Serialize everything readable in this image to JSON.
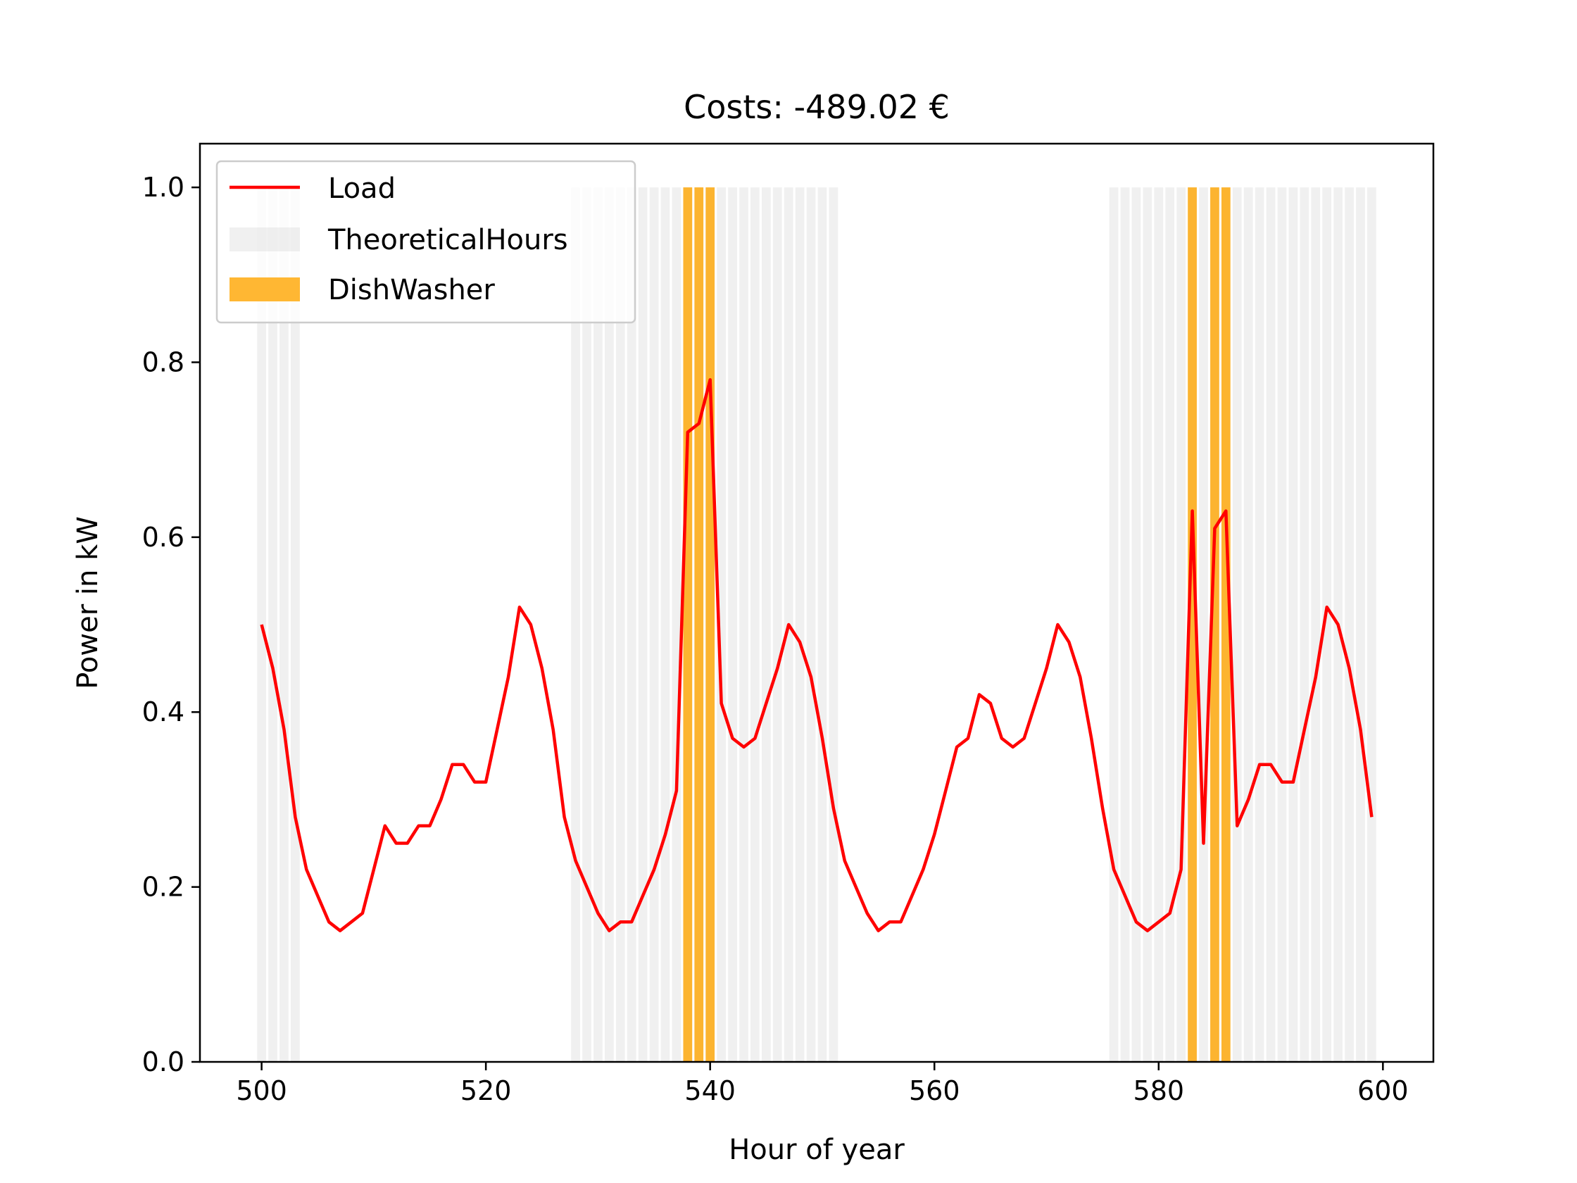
{
  "chart_data": {
    "type": "line",
    "title": "Costs: -489.02 €",
    "xlabel": "Hour of year",
    "ylabel": "Power in kW",
    "xlim": [
      494.5,
      604.5
    ],
    "ylim": [
      0,
      1.05
    ],
    "xticks": [
      500,
      520,
      540,
      560,
      580,
      600
    ],
    "yticks": [
      0.0,
      0.2,
      0.4,
      0.6,
      0.8,
      1.0
    ],
    "xtick_labels": [
      "500",
      "520",
      "540",
      "560",
      "580",
      "600"
    ],
    "ytick_labels": [
      "0.0",
      "0.2",
      "0.4",
      "0.6",
      "0.8",
      "1.0"
    ],
    "grid": false,
    "legend": {
      "position": "top-left",
      "entries": [
        {
          "label": "Load",
          "kind": "line",
          "color": "#ff0000"
        },
        {
          "label": "TheoreticalHours",
          "kind": "patch",
          "color": "#d9d9d9"
        },
        {
          "label": "DishWasher",
          "kind": "patch",
          "color": "#ffa500"
        }
      ]
    },
    "series": [
      {
        "name": "Load",
        "color": "#ff0000",
        "x": [
          500,
          501,
          502,
          503,
          504,
          505,
          506,
          507,
          508,
          509,
          510,
          511,
          512,
          513,
          514,
          515,
          516,
          517,
          518,
          519,
          520,
          521,
          522,
          523,
          524,
          525,
          526,
          527,
          528,
          529,
          530,
          531,
          532,
          533,
          534,
          535,
          536,
          537,
          538,
          539,
          540,
          541,
          542,
          543,
          544,
          545,
          546,
          547,
          548,
          549,
          550,
          551,
          552,
          553,
          554,
          555,
          556,
          557,
          558,
          559,
          560,
          561,
          562,
          563,
          564,
          565,
          566,
          567,
          568,
          569,
          570,
          571,
          572,
          573,
          574,
          575,
          576,
          577,
          578,
          579,
          580,
          581,
          582,
          583,
          584,
          585,
          586,
          587,
          588,
          589,
          590,
          591,
          592,
          593,
          594,
          595,
          596,
          597,
          598,
          599
        ],
        "values": [
          0.5,
          0.45,
          0.38,
          0.28,
          0.22,
          0.19,
          0.16,
          0.15,
          0.16,
          0.17,
          0.22,
          0.27,
          0.25,
          0.25,
          0.27,
          0.27,
          0.3,
          0.34,
          0.34,
          0.32,
          0.32,
          0.38,
          0.44,
          0.52,
          0.5,
          0.45,
          0.38,
          0.28,
          0.23,
          0.2,
          0.17,
          0.15,
          0.16,
          0.16,
          0.19,
          0.22,
          0.26,
          0.31,
          0.72,
          0.73,
          0.78,
          0.41,
          0.37,
          0.36,
          0.37,
          0.41,
          0.45,
          0.5,
          0.48,
          0.44,
          0.37,
          0.29,
          0.23,
          0.2,
          0.17,
          0.15,
          0.16,
          0.16,
          0.19,
          0.22,
          0.26,
          0.31,
          0.36,
          0.37,
          0.42,
          0.41,
          0.37,
          0.36,
          0.37,
          0.41,
          0.45,
          0.5,
          0.48,
          0.44,
          0.37,
          0.29,
          0.22,
          0.19,
          0.16,
          0.15,
          0.16,
          0.17,
          0.22,
          0.63,
          0.25,
          0.61,
          0.63,
          0.27,
          0.3,
          0.34,
          0.34,
          0.32,
          0.32,
          0.38,
          0.44,
          0.52,
          0.5,
          0.45,
          0.38,
          0.28
        ]
      }
    ],
    "theoretical_hours": {
      "name": "TheoreticalHours",
      "color": "#d9d9d9",
      "height": 1.0,
      "x": [
        500,
        501,
        502,
        503,
        528,
        529,
        530,
        531,
        532,
        533,
        534,
        535,
        536,
        537,
        538,
        539,
        540,
        541,
        542,
        543,
        544,
        545,
        546,
        547,
        548,
        549,
        550,
        551,
        576,
        577,
        578,
        579,
        580,
        581,
        582,
        583,
        584,
        585,
        586,
        587,
        588,
        589,
        590,
        591,
        592,
        593,
        594,
        595,
        596,
        597,
        598,
        599
      ]
    },
    "dishwasher": {
      "name": "DishWasher",
      "color": "#ffa500",
      "height": 1.0,
      "x": [
        538,
        539,
        540,
        583,
        585,
        586
      ]
    }
  }
}
